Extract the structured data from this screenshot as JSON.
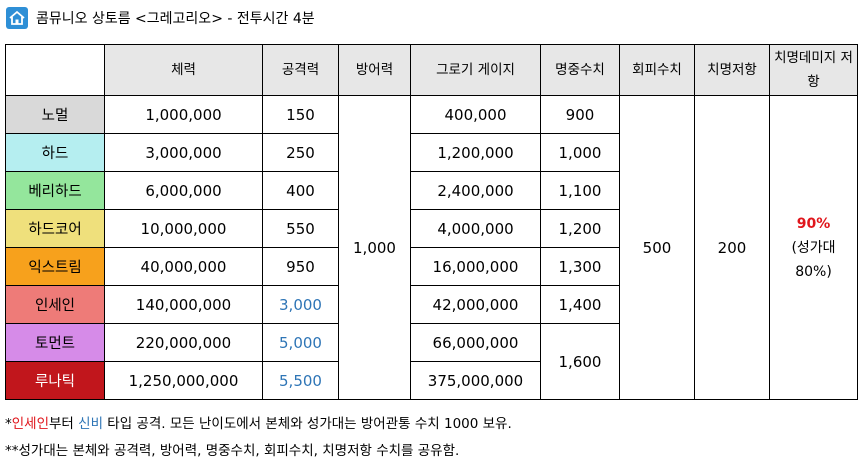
{
  "header": {
    "title": "콤뮤니오 상토름 <그레고리오> - 전투시간 4분"
  },
  "table": {
    "columns": [
      "체력",
      "공격력",
      "방어력",
      "그로기 게이지",
      "명중수치",
      "회피수치",
      "치명저항",
      "치명데미지 저항"
    ],
    "rows": [
      {
        "difficulty": "노멀",
        "hp": "1,000,000",
        "attack": "150",
        "groggy": "400,000"
      },
      {
        "difficulty": "하드",
        "hp": "3,000,000",
        "attack": "250",
        "groggy": "1,200,000"
      },
      {
        "difficulty": "베리하드",
        "hp": "6,000,000",
        "attack": "400",
        "groggy": "2,400,000"
      },
      {
        "difficulty": "하드코어",
        "hp": "10,000,000",
        "attack": "550",
        "groggy": "4,000,000"
      },
      {
        "difficulty": "익스트림",
        "hp": "40,000,000",
        "attack": "950",
        "groggy": "16,000,000"
      },
      {
        "difficulty": "인세인",
        "hp": "140,000,000",
        "attack": "3,000",
        "groggy": "42,000,000"
      },
      {
        "difficulty": "토먼트",
        "hp": "220,000,000",
        "attack": "5,000",
        "groggy": "66,000,000"
      },
      {
        "difficulty": "루나틱",
        "hp": "1,250,000,000",
        "attack": "5,500",
        "groggy": "375,000,000"
      }
    ],
    "accuracy": [
      "900",
      "1,000",
      "1,100",
      "1,200",
      "1,300",
      "1,400",
      "1,600"
    ],
    "defense": "1,000",
    "evasion": "500",
    "crit_resist": "200",
    "crit_damage_resist": [
      "90%",
      "(성가대",
      "80%)"
    ]
  },
  "footnotes": [
    [
      "*",
      "인세인",
      "부터 ",
      "신비",
      " 타입 공격. 모든 난이도에서 본체와 성가대는 방어관통 수치 1000 보유."
    ],
    [
      "**성가대는 본체와 공격력, 방어력, 명중수치, 회피수치, 치명저항 수치를 공유함."
    ]
  ]
}
